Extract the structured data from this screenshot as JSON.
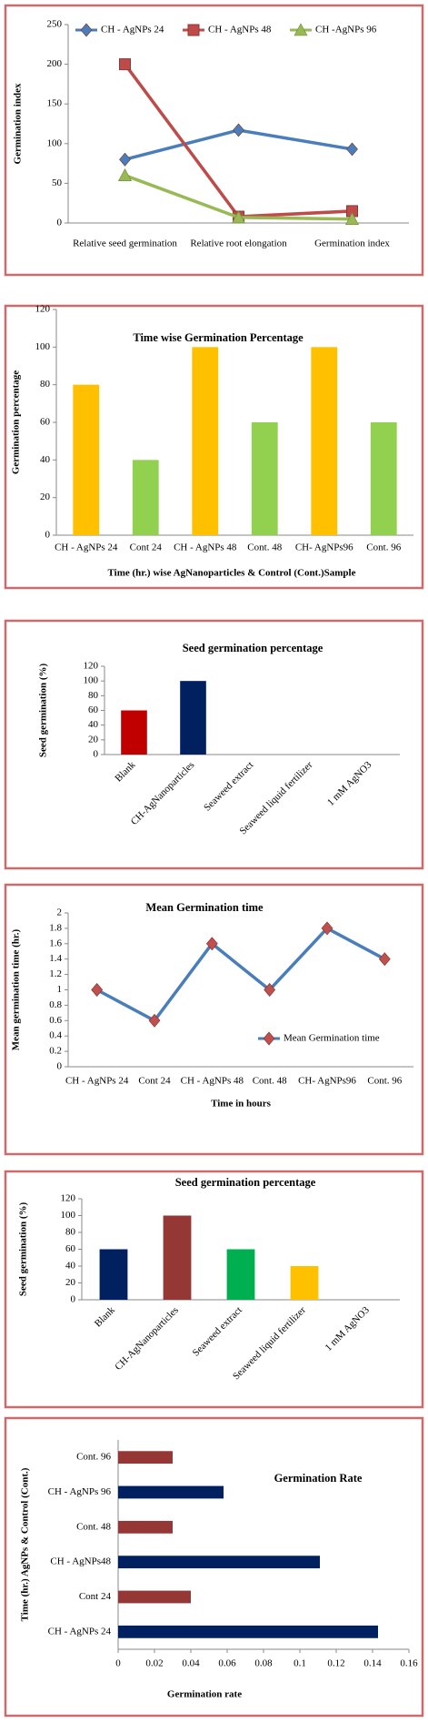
{
  "chart_data": [
    {
      "type": "line",
      "ylabel": "Germination index",
      "legend": "top",
      "categories": [
        "Relative seed germination",
        "Relative root elongation",
        "Germination index"
      ],
      "ylim": [
        0,
        250
      ],
      "yticks": [
        0,
        50,
        100,
        150,
        200,
        250
      ],
      "series": [
        {
          "name": "CH - AgNPs 24",
          "color": "#4a7ebb",
          "marker": "diamond",
          "values": [
            80,
            117,
            93
          ]
        },
        {
          "name": "CH - AgNPs  48",
          "color": "#be4b48",
          "marker": "square",
          "values": [
            200,
            8,
            15
          ]
        },
        {
          "name": "CH -AgNPs 96",
          "color": "#98b954",
          "marker": "triangle",
          "values": [
            60,
            7,
            5
          ]
        }
      ]
    },
    {
      "type": "bar",
      "title": "Time wise Germination  Percentage",
      "ylabel": "Germination percentage",
      "xlabel": "Time (hr.) wise AgNanoparticles & Control (Cont.)Sample",
      "categories": [
        "CH - AgNPs  24",
        "Cont 24",
        "CH - AgNPs 48",
        "Cont. 48",
        "CH- AgNPs96",
        "Cont. 96"
      ],
      "values": [
        80,
        40,
        100,
        60,
        100,
        60
      ],
      "colors": [
        "#ffc000",
        "#92d050",
        "#ffc000",
        "#92d050",
        "#ffc000",
        "#92d050"
      ],
      "ylim": [
        0,
        120
      ],
      "yticks": [
        0,
        20,
        40,
        60,
        80,
        100,
        120
      ]
    },
    {
      "type": "bar",
      "title": "Seed germination percentage",
      "ylabel": "Seed germination (%)",
      "categories": [
        "Blank",
        "CH-AgNanoparticles",
        "Seaweed extract",
        "Seaweed liquid fertilizer",
        "1 mM AgNO3"
      ],
      "values": [
        60,
        100,
        0,
        0,
        0
      ],
      "colors": [
        "#c00000",
        "#002060",
        "#00b050",
        "#ffc000",
        "#7f7f7f"
      ],
      "ylim": [
        0,
        120
      ],
      "yticks": [
        0,
        20,
        40,
        60,
        80,
        100,
        120
      ]
    },
    {
      "type": "line",
      "title": "Mean Germination time",
      "ylabel": "Mean germination time (hr.)",
      "xlabel": "Time in hours",
      "legend": "center-right",
      "categories": [
        "CH - AgNPs 24",
        "Cont 24",
        "CH - AgNPs 48",
        "Cont. 48",
        "CH- AgNPs96",
        "Cont. 96"
      ],
      "ylim": [
        0,
        2
      ],
      "yticks": [
        0,
        0.2,
        0.4,
        0.6,
        0.8,
        1,
        1.2,
        1.4,
        1.6,
        1.8,
        2
      ],
      "series": [
        {
          "name": "Mean Germination time",
          "color": "#4a7ebb",
          "marker": "diamond",
          "marker_color": "#c0504d",
          "values": [
            1,
            0.6,
            1.6,
            1,
            1.8,
            1.4
          ]
        }
      ]
    },
    {
      "type": "bar",
      "title": "Seed germination  percentage",
      "ylabel": "Seed germination (%)",
      "categories": [
        "Blank",
        "CH-AgNanoparticles",
        "Seaweed extract",
        "Seaweed liquid fertilizer",
        "1 mM AgNO3"
      ],
      "values": [
        60,
        100,
        60,
        40,
        0
      ],
      "colors": [
        "#002060",
        "#953735",
        "#00b050",
        "#ffc000",
        "#7f7f7f"
      ],
      "ylim": [
        0,
        120
      ],
      "yticks": [
        0,
        20,
        40,
        60,
        80,
        100,
        120
      ]
    },
    {
      "type": "bar",
      "orientation": "horizontal",
      "title": "Germination Rate",
      "xlabel": "Germination rate",
      "ylabel": "Time (hr.) AgNPs & Control (Cont.)",
      "categories": [
        "CH - AgNPs  24",
        "Cont 24",
        "CH - AgNPs48",
        "Cont. 48",
        "CH - AgNPs 96",
        "Cont. 96"
      ],
      "values": [
        0.143,
        0.04,
        0.111,
        0.03,
        0.058,
        0.03
      ],
      "colors": [
        "#002060",
        "#953735",
        "#002060",
        "#953735",
        "#002060",
        "#953735"
      ],
      "xlim": [
        0,
        0.16
      ],
      "xticks": [
        0,
        0.02,
        0.04,
        0.06,
        0.08,
        0.1,
        0.12,
        0.14,
        0.16
      ]
    }
  ]
}
